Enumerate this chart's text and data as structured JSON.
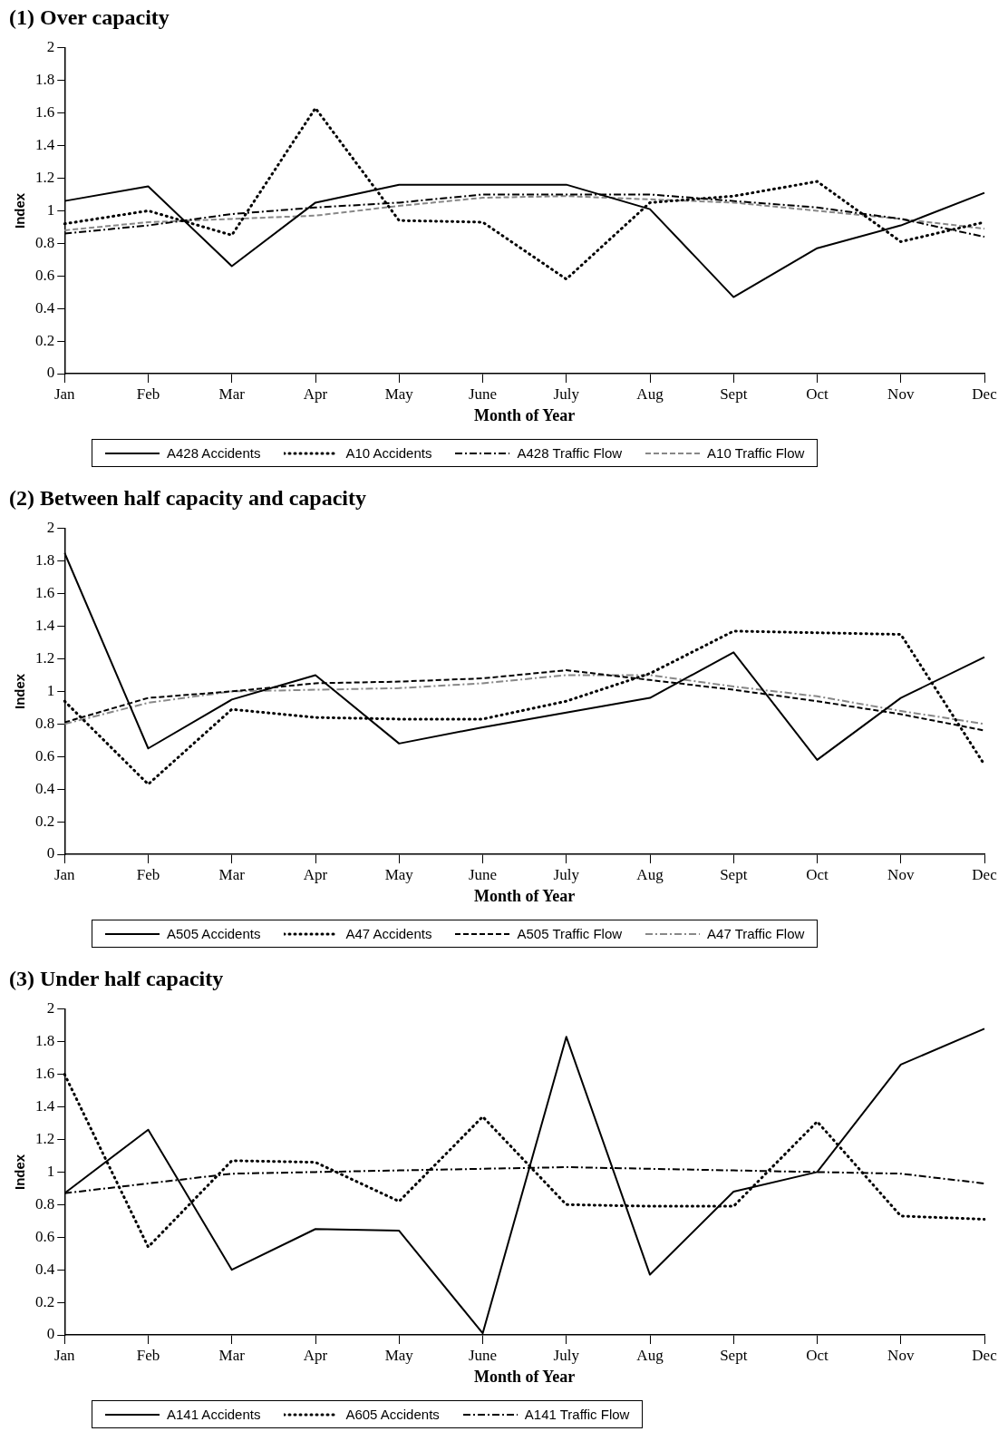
{
  "chart_data": [
    {
      "type": "line",
      "title": "(1) Over capacity",
      "xlabel": "Month of Year",
      "ylabel": "Index",
      "categories": [
        "Jan",
        "Feb",
        "Mar",
        "Apr",
        "May",
        "June",
        "July",
        "Aug",
        "Sept",
        "Oct",
        "Nov",
        "Dec"
      ],
      "ylim": [
        0,
        2
      ],
      "yticks": [
        0,
        0.2,
        0.4,
        0.6,
        0.8,
        1,
        1.2,
        1.4,
        1.6,
        1.8,
        2
      ],
      "grid": false,
      "legend": "bottom",
      "marker": "none",
      "series": [
        {
          "name": "A428 Accidents",
          "color": "#000000",
          "line_style": "solid",
          "values": [
            1.06,
            1.15,
            0.66,
            1.05,
            1.16,
            1.16,
            1.16,
            1.01,
            0.47,
            0.77,
            0.91,
            1.11
          ]
        },
        {
          "name": "A10 Accidents",
          "color": "#000000",
          "line_style": "dotted",
          "values": [
            0.92,
            1.0,
            0.85,
            1.63,
            0.94,
            0.93,
            0.58,
            1.05,
            1.09,
            1.18,
            0.81,
            0.93
          ]
        },
        {
          "name": "A428 Traffic Flow",
          "color": "#000000",
          "line_style": "dashdot",
          "values": [
            0.86,
            0.91,
            0.98,
            1.02,
            1.05,
            1.1,
            1.1,
            1.1,
            1.06,
            1.02,
            0.95,
            0.84
          ]
        },
        {
          "name": "A10 Traffic Flow",
          "color": "#888888",
          "line_style": "dashed",
          "values": [
            0.88,
            0.93,
            0.95,
            0.97,
            1.03,
            1.08,
            1.09,
            1.07,
            1.05,
            1.0,
            0.95,
            0.89
          ]
        }
      ]
    },
    {
      "type": "line",
      "title": "(2) Between half capacity and capacity",
      "xlabel": "Month of Year",
      "ylabel": "Index",
      "categories": [
        "Jan",
        "Feb",
        "Mar",
        "Apr",
        "May",
        "June",
        "July",
        "Aug",
        "Sept",
        "Oct",
        "Nov",
        "Dec"
      ],
      "ylim": [
        0,
        2
      ],
      "yticks": [
        0,
        0.2,
        0.4,
        0.6,
        0.8,
        1,
        1.2,
        1.4,
        1.6,
        1.8,
        2
      ],
      "grid": false,
      "legend": "bottom",
      "marker": "none",
      "series": [
        {
          "name": "A505 Accidents",
          "color": "#000000",
          "line_style": "solid",
          "values": [
            1.85,
            0.65,
            0.95,
            1.1,
            0.68,
            0.78,
            0.87,
            0.96,
            1.24,
            0.58,
            0.96,
            1.21
          ]
        },
        {
          "name": "A47 Accidents",
          "color": "#000000",
          "line_style": "dotted",
          "values": [
            0.94,
            0.43,
            0.89,
            0.84,
            0.83,
            0.83,
            0.94,
            1.11,
            1.37,
            1.36,
            1.35,
            0.55
          ]
        },
        {
          "name": "A505 Traffic Flow",
          "color": "#000000",
          "line_style": "dashed",
          "values": [
            0.81,
            0.96,
            1.0,
            1.05,
            1.06,
            1.08,
            1.13,
            1.07,
            1.01,
            0.94,
            0.86,
            0.76
          ]
        },
        {
          "name": "A47 Traffic Flow",
          "color": "#888888",
          "line_style": "dashdot",
          "values": [
            0.8,
            0.93,
            1.0,
            1.01,
            1.02,
            1.05,
            1.1,
            1.1,
            1.03,
            0.97,
            0.88,
            0.8
          ]
        }
      ]
    },
    {
      "type": "line",
      "title": "(3) Under half capacity",
      "xlabel": "Month of Year",
      "ylabel": "Index",
      "categories": [
        "Jan",
        "Feb",
        "Mar",
        "Apr",
        "May",
        "June",
        "July",
        "Aug",
        "Sept",
        "Oct",
        "Nov",
        "Dec"
      ],
      "ylim": [
        0,
        2
      ],
      "yticks": [
        0,
        0.2,
        0.4,
        0.6,
        0.8,
        1,
        1.2,
        1.4,
        1.6,
        1.8,
        2
      ],
      "grid": false,
      "legend": "bottom",
      "marker": "none",
      "series": [
        {
          "name": "A141 Accidents",
          "color": "#000000",
          "line_style": "solid",
          "values": [
            0.87,
            1.26,
            0.4,
            0.65,
            0.64,
            0.01,
            1.83,
            0.37,
            0.88,
            1.0,
            1.66,
            1.88
          ]
        },
        {
          "name": "A605 Accidents",
          "color": "#000000",
          "line_style": "dotted",
          "values": [
            1.6,
            0.54,
            1.07,
            1.06,
            0.82,
            1.34,
            0.8,
            0.79,
            0.79,
            1.31,
            0.73,
            0.71
          ]
        },
        {
          "name": "A141 Traffic Flow",
          "color": "#000000",
          "line_style": "dashdot",
          "values": [
            0.87,
            0.93,
            0.99,
            1.0,
            1.01,
            1.02,
            1.03,
            1.02,
            1.01,
            1.0,
            0.99,
            0.93
          ]
        }
      ]
    }
  ]
}
